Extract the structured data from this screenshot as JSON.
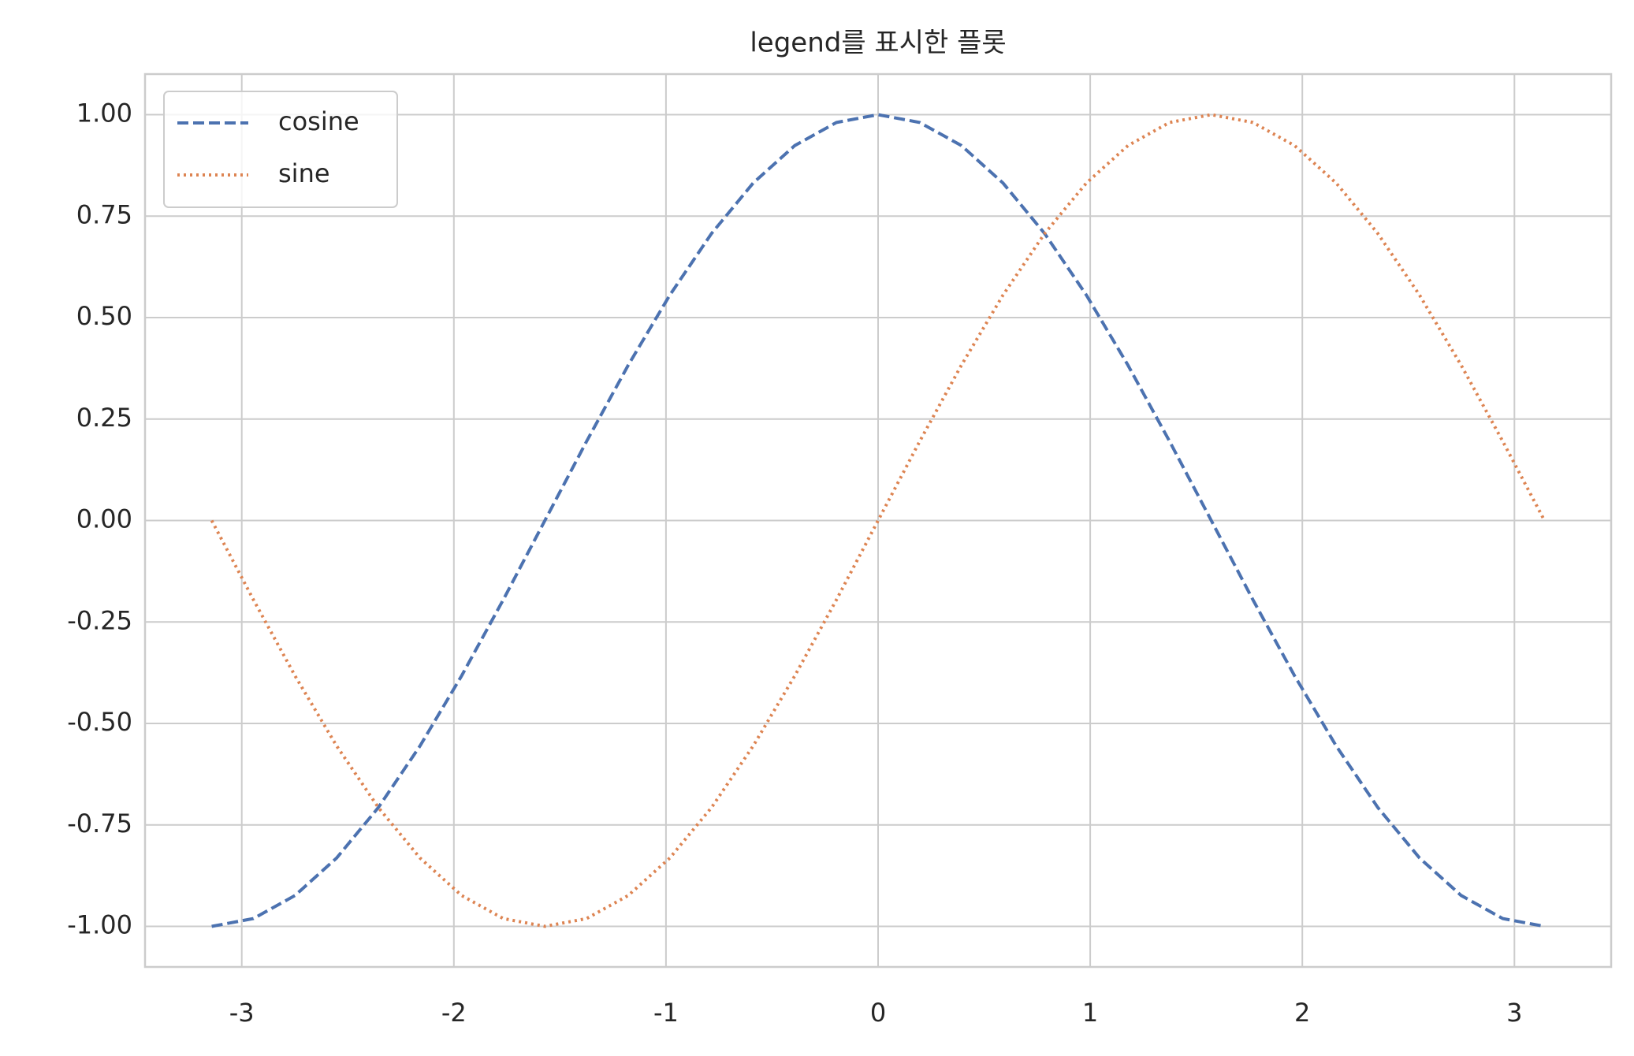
{
  "chart_data": {
    "type": "line",
    "title": "legend를 표시한 플롯",
    "x": [
      -3.1416,
      -2.9452,
      -2.7489,
      -2.5525,
      -2.3562,
      -2.1598,
      -1.9635,
      -1.7671,
      -1.5708,
      -1.3744,
      -1.1781,
      -0.9817,
      -0.7854,
      -0.589,
      -0.3927,
      -0.1963,
      0,
      0.1963,
      0.3927,
      0.589,
      0.7854,
      0.9817,
      1.1781,
      1.3744,
      1.5708,
      1.7671,
      1.9635,
      2.1598,
      2.3562,
      2.5525,
      2.7489,
      2.9452,
      3.1416
    ],
    "series": [
      {
        "name": "cosine",
        "color": "#4c72b0",
        "dash": "dashed",
        "values": [
          -1,
          -0.9808,
          -0.9239,
          -0.8315,
          -0.7071,
          -0.5556,
          -0.3827,
          -0.1951,
          0,
          0.1951,
          0.3827,
          0.5556,
          0.7071,
          0.8315,
          0.9239,
          0.9808,
          1,
          0.9808,
          0.9239,
          0.8315,
          0.7071,
          0.5556,
          0.3827,
          0.1951,
          0,
          -0.1951,
          -0.3827,
          -0.5556,
          -0.7071,
          -0.8315,
          -0.9239,
          -0.9808,
          -1
        ]
      },
      {
        "name": "sine",
        "color": "#dd8452",
        "dash": "dotted",
        "values": [
          0,
          -0.1951,
          -0.3827,
          -0.5556,
          -0.7071,
          -0.8315,
          -0.9239,
          -0.9808,
          -1,
          -0.9808,
          -0.9239,
          -0.8315,
          -0.7071,
          -0.5556,
          -0.3827,
          -0.1951,
          0,
          0.1951,
          0.3827,
          0.5556,
          0.7071,
          0.8315,
          0.9239,
          0.9808,
          1,
          0.9808,
          0.9239,
          0.8315,
          0.7071,
          0.5556,
          0.3827,
          0.1951,
          0
        ]
      }
    ],
    "xlim": [
      -3.456,
      3.456
    ],
    "ylim": [
      -1.1,
      1.1
    ],
    "xticks": [
      -3,
      -2,
      -1,
      0,
      1,
      2,
      3
    ],
    "yticks": [
      {
        "value": -1,
        "label": "-1.00"
      },
      {
        "value": -0.75,
        "label": "-0.75"
      },
      {
        "value": -0.5,
        "label": "-0.50"
      },
      {
        "value": -0.25,
        "label": "-0.25"
      },
      {
        "value": 0,
        "label": "0.00"
      },
      {
        "value": 0.25,
        "label": "0.25"
      },
      {
        "value": 0.5,
        "label": "0.50"
      },
      {
        "value": 0.75,
        "label": "0.75"
      },
      {
        "value": 1,
        "label": "1.00"
      }
    ],
    "grid": true,
    "legend": "upper left"
  }
}
